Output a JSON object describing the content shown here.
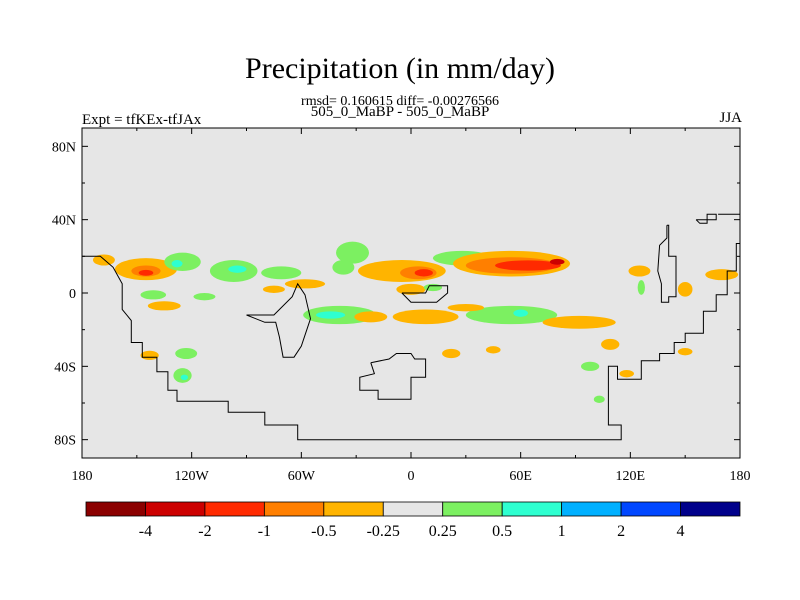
{
  "title": "Precipitation (in mm/day)",
  "stats": "rmsd= 0.160615 diff= -0.00276566",
  "subtitle_center": "505_0_MaBP - 505_0_MaBP",
  "subtitle_left": "Expt = tfKEx-tfJAx",
  "subtitle_right": "JJA",
  "chart_data": {
    "type": "heatmap",
    "projection": "cylindrical-equidistant",
    "x_ticks": [
      "180",
      "120W",
      "60W",
      "0",
      "60E",
      "120E",
      "180"
    ],
    "y_ticks": [
      "80N",
      "40N",
      "0",
      "40S",
      "80S"
    ],
    "xlim": [
      -180,
      180
    ],
    "ylim": [
      -90,
      90
    ],
    "background_color": "#e6e6e6",
    "colorbar": {
      "labels": [
        "-4",
        "-2",
        "-1",
        "-0.5",
        "-0.25",
        "0.25",
        "0.5",
        "1",
        "2",
        "4"
      ],
      "colors": [
        "#8b0000",
        "#cc0000",
        "#ff2a00",
        "#ff7f00",
        "#ffb400",
        "#e6e6e6",
        "#7cf061",
        "#2effd0",
        "#00b0ff",
        "#0047ff",
        "#00008b"
      ]
    },
    "anomaly_regions": [
      {
        "lon": -168,
        "lat": 18,
        "rx": 6,
        "ry": 3,
        "level": "-0.25"
      },
      {
        "lon": -145,
        "lat": 13,
        "rx": 17,
        "ry": 6,
        "level": "-0.25"
      },
      {
        "lon": -145,
        "lat": 12,
        "rx": 8,
        "ry": 3,
        "level": "-0.5"
      },
      {
        "lon": -145,
        "lat": 11,
        "rx": 4,
        "ry": 1.6,
        "level": "-1"
      },
      {
        "lon": -125,
        "lat": 17,
        "rx": 10,
        "ry": 5,
        "level": "0.25"
      },
      {
        "lon": -128,
        "lat": 16,
        "rx": 3,
        "ry": 2,
        "level": "0.5"
      },
      {
        "lon": -97,
        "lat": 12,
        "rx": 13,
        "ry": 6,
        "level": "0.25"
      },
      {
        "lon": -95,
        "lat": 13,
        "rx": 5,
        "ry": 2,
        "level": "0.5"
      },
      {
        "lon": -141,
        "lat": -1,
        "rx": 7,
        "ry": 2.5,
        "level": "0.25"
      },
      {
        "lon": -113,
        "lat": -2,
        "rx": 6,
        "ry": 2,
        "level": "0.25"
      },
      {
        "lon": -135,
        "lat": -7,
        "rx": 9,
        "ry": 2.5,
        "level": "-0.25"
      },
      {
        "lon": -71,
        "lat": 11,
        "rx": 11,
        "ry": 3.5,
        "level": "0.25"
      },
      {
        "lon": -75,
        "lat": 2,
        "rx": 6,
        "ry": 2,
        "level": "-0.25"
      },
      {
        "lon": -58,
        "lat": 5,
        "rx": 11,
        "ry": 2.5,
        "level": "-0.25"
      },
      {
        "lon": -32,
        "lat": 22,
        "rx": 9,
        "ry": 6,
        "level": "0.25"
      },
      {
        "lon": -37,
        "lat": 14,
        "rx": 6,
        "ry": 4,
        "level": "0.25"
      },
      {
        "lon": -5,
        "lat": 12,
        "rx": 24,
        "ry": 6,
        "level": "-0.25"
      },
      {
        "lon": 4,
        "lat": 11,
        "rx": 10,
        "ry": 3.5,
        "level": "-0.5"
      },
      {
        "lon": 7,
        "lat": 11,
        "rx": 5,
        "ry": 2,
        "level": "-1"
      },
      {
        "lon": 28,
        "lat": 19,
        "rx": 16,
        "ry": 4,
        "level": "0.25"
      },
      {
        "lon": 55,
        "lat": 16,
        "rx": 32,
        "ry": 7,
        "level": "-0.25"
      },
      {
        "lon": 55,
        "lat": 15,
        "rx": 25,
        "ry": 4.5,
        "level": "-0.5"
      },
      {
        "lon": 64,
        "lat": 15,
        "rx": 18,
        "ry": 2.8,
        "level": "-1"
      },
      {
        "lon": 80,
        "lat": 17,
        "rx": 4,
        "ry": 1.6,
        "level": "-2"
      },
      {
        "lon": 0,
        "lat": 2,
        "rx": 8,
        "ry": 3,
        "level": "-0.25"
      },
      {
        "lon": 12,
        "lat": 3,
        "rx": 5,
        "ry": 2,
        "level": "0.25"
      },
      {
        "lon": -39,
        "lat": -12,
        "rx": 20,
        "ry": 5,
        "level": "0.25"
      },
      {
        "lon": -44,
        "lat": -12,
        "rx": 8,
        "ry": 2,
        "level": "0.5"
      },
      {
        "lon": -22,
        "lat": -13,
        "rx": 9,
        "ry": 3,
        "level": "-0.25"
      },
      {
        "lon": 8,
        "lat": -13,
        "rx": 18,
        "ry": 4,
        "level": "-0.25"
      },
      {
        "lon": 55,
        "lat": -12,
        "rx": 25,
        "ry": 5,
        "level": "0.25"
      },
      {
        "lon": 60,
        "lat": -11,
        "rx": 4,
        "ry": 2,
        "level": "0.5"
      },
      {
        "lon": 92,
        "lat": -16,
        "rx": 20,
        "ry": 3.5,
        "level": "-0.25"
      },
      {
        "lon": 30,
        "lat": -8,
        "rx": 10,
        "ry": 2,
        "level": "-0.25"
      },
      {
        "lon": 125,
        "lat": 12,
        "rx": 6,
        "ry": 3,
        "level": "-0.25"
      },
      {
        "lon": 150,
        "lat": 2,
        "rx": 4,
        "ry": 4,
        "level": "-0.25"
      },
      {
        "lon": 126,
        "lat": 3,
        "rx": 2,
        "ry": 4,
        "level": "0.25"
      },
      {
        "lon": 170,
        "lat": 10,
        "rx": 9,
        "ry": 3,
        "level": "-0.25"
      },
      {
        "lon": -123,
        "lat": -33,
        "rx": 6,
        "ry": 3,
        "level": "0.25"
      },
      {
        "lon": -143,
        "lat": -34,
        "rx": 5,
        "ry": 2.5,
        "level": "-0.25"
      },
      {
        "lon": -125,
        "lat": -45,
        "rx": 5,
        "ry": 4,
        "level": "0.25"
      },
      {
        "lon": -124,
        "lat": -46,
        "rx": 2,
        "ry": 1.5,
        "level": "0.5"
      },
      {
        "lon": 22,
        "lat": -33,
        "rx": 5,
        "ry": 2.5,
        "level": "-0.25"
      },
      {
        "lon": 45,
        "lat": -31,
        "rx": 4,
        "ry": 2,
        "level": "-0.25"
      },
      {
        "lon": 98,
        "lat": -40,
        "rx": 5,
        "ry": 2.5,
        "level": "0.25"
      },
      {
        "lon": 118,
        "lat": -44,
        "rx": 4,
        "ry": 2,
        "level": "-0.25"
      },
      {
        "lon": 109,
        "lat": -28,
        "rx": 5,
        "ry": 3,
        "level": "-0.25"
      },
      {
        "lon": 150,
        "lat": -32,
        "rx": 4,
        "ry": 2,
        "level": "-0.25"
      },
      {
        "lon": 103,
        "lat": -58,
        "rx": 3,
        "ry": 2,
        "level": "0.25"
      }
    ],
    "coastlines": [
      [
        [
          -180,
          20
        ],
        [
          -170,
          20
        ],
        [
          -163,
          14
        ],
        [
          -158,
          5
        ],
        [
          -158,
          -9
        ],
        [
          -153,
          -15
        ],
        [
          -153,
          -27
        ],
        [
          -147,
          -27
        ],
        [
          -147,
          -35
        ],
        [
          -139,
          -35
        ],
        [
          -139,
          -43
        ],
        [
          -133,
          -43
        ],
        [
          -133,
          -53
        ],
        [
          -128,
          -53
        ],
        [
          -128,
          -59
        ],
        [
          -100,
          -59
        ],
        [
          -100,
          -65
        ],
        [
          -80,
          -65
        ],
        [
          -80,
          -72
        ],
        [
          -62,
          -72
        ],
        [
          -62,
          -80
        ],
        [
          115,
          -80
        ],
        [
          115,
          -72
        ],
        [
          108,
          -72
        ],
        [
          108,
          -40
        ],
        [
          113,
          -40
        ],
        [
          113,
          -47
        ],
        [
          126,
          -47
        ],
        [
          126,
          -37
        ],
        [
          136,
          -37
        ],
        [
          136,
          -33
        ],
        [
          144,
          -33
        ],
        [
          144,
          -27
        ],
        [
          150,
          -27
        ],
        [
          150,
          -22
        ],
        [
          160,
          -22
        ],
        [
          160,
          -10
        ],
        [
          167,
          -10
        ],
        [
          167,
          -1
        ],
        [
          173,
          -1
        ],
        [
          173,
          12
        ],
        [
          178,
          12
        ],
        [
          178,
          27
        ],
        [
          180,
          27
        ]
      ],
      [
        [
          -90,
          -12
        ],
        [
          -75,
          -12
        ],
        [
          -65,
          -2
        ],
        [
          -62,
          5
        ],
        [
          -58,
          -1
        ],
        [
          -55,
          -14
        ],
        [
          -60,
          -29
        ],
        [
          -64,
          -35
        ],
        [
          -70,
          -35
        ],
        [
          -72,
          -24
        ],
        [
          -74,
          -16
        ],
        [
          -80,
          -16
        ],
        [
          -90,
          -12
        ]
      ],
      [
        [
          -22,
          -38
        ],
        [
          -12,
          -36
        ],
        [
          -8,
          -33
        ],
        [
          0,
          -33
        ],
        [
          2,
          -36
        ],
        [
          8,
          -36
        ],
        [
          8,
          -46
        ],
        [
          0,
          -46
        ],
        [
          0,
          -58
        ],
        [
          -18,
          -58
        ],
        [
          -18,
          -53
        ],
        [
          -28,
          -53
        ],
        [
          -28,
          -46
        ],
        [
          -20,
          -44
        ],
        [
          -22,
          -38
        ]
      ],
      [
        [
          -5,
          0
        ],
        [
          8,
          0
        ],
        [
          10,
          4
        ],
        [
          20,
          4
        ],
        [
          20,
          0
        ],
        [
          14,
          -5
        ],
        [
          0,
          -5
        ],
        [
          -5,
          0
        ]
      ],
      [
        [
          140,
          37
        ],
        [
          141,
          37
        ],
        [
          141,
          20
        ],
        [
          145,
          20
        ],
        [
          145,
          -2
        ],
        [
          141,
          -2
        ],
        [
          141,
          -5
        ],
        [
          137,
          -5
        ],
        [
          137,
          5
        ],
        [
          135,
          12
        ],
        [
          136,
          26
        ],
        [
          140,
          30
        ],
        [
          140,
          37
        ]
      ],
      [
        [
          156,
          40
        ],
        [
          167,
          40
        ],
        [
          167,
          43
        ],
        [
          162,
          43
        ],
        [
          162,
          38
        ],
        [
          158,
          38
        ],
        [
          156,
          40
        ]
      ],
      [
        [
          168,
          43
        ],
        [
          180,
          43
        ]
      ]
    ]
  }
}
